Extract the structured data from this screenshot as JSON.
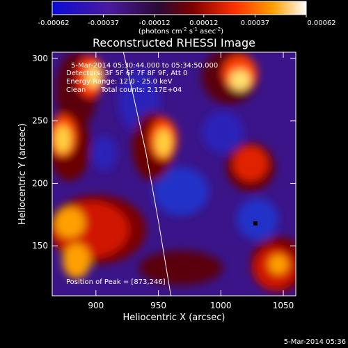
{
  "colorbar": {
    "ticks": [
      "-0.00062",
      "-0.00037",
      "-0.00012",
      "0.00012",
      "0.00037",
      "0.00062"
    ],
    "tick_values": [
      -0.00062,
      -0.00037,
      -0.00012,
      0.00012,
      0.00037,
      0.00062
    ],
    "unit_text": "(photons cm",
    "unit_sup1": "-2",
    "unit_mid": " s",
    "unit_sup2": "-1",
    "unit_end": " asec",
    "unit_sup3": "-2",
    "unit_close": ")",
    "colors": [
      "#0b0bd6",
      "#4a1aa0",
      "#3b0d3b",
      "#7a0000",
      "#ff3000",
      "#ffa000",
      "#ffffff"
    ]
  },
  "annotations": {
    "time_range": "5-Mar-2014 05:30:44.000 to 05:34:50.000",
    "detectors": "Detectors: 3F 5F 6F 7F 8F 9F, Att 0",
    "energy": "Energy Range: 12.0 - 25.0 keV",
    "clean": "Clean",
    "counts": "Total counts: 2.17E+04",
    "peak": "Position of Peak = [873,246]",
    "timestamp": "5-Mar-2014 05:36"
  },
  "chart_data": {
    "type": "heatmap",
    "title": "Reconstructed RHESSI Image",
    "xlabel": "Heliocentric X (arcsec)",
    "ylabel": "Heliocentric Y (arcsec)",
    "xlim": [
      865,
      1060
    ],
    "ylim": [
      110,
      305
    ],
    "xticks": [
      900,
      950,
      1000,
      1050
    ],
    "yticks": [
      150,
      200,
      250,
      300
    ],
    "peak": [
      873,
      246
    ],
    "limb_x": [
      922,
      930,
      940,
      950,
      960
    ],
    "limb_y": [
      305,
      270,
      225,
      170,
      110
    ]
  }
}
